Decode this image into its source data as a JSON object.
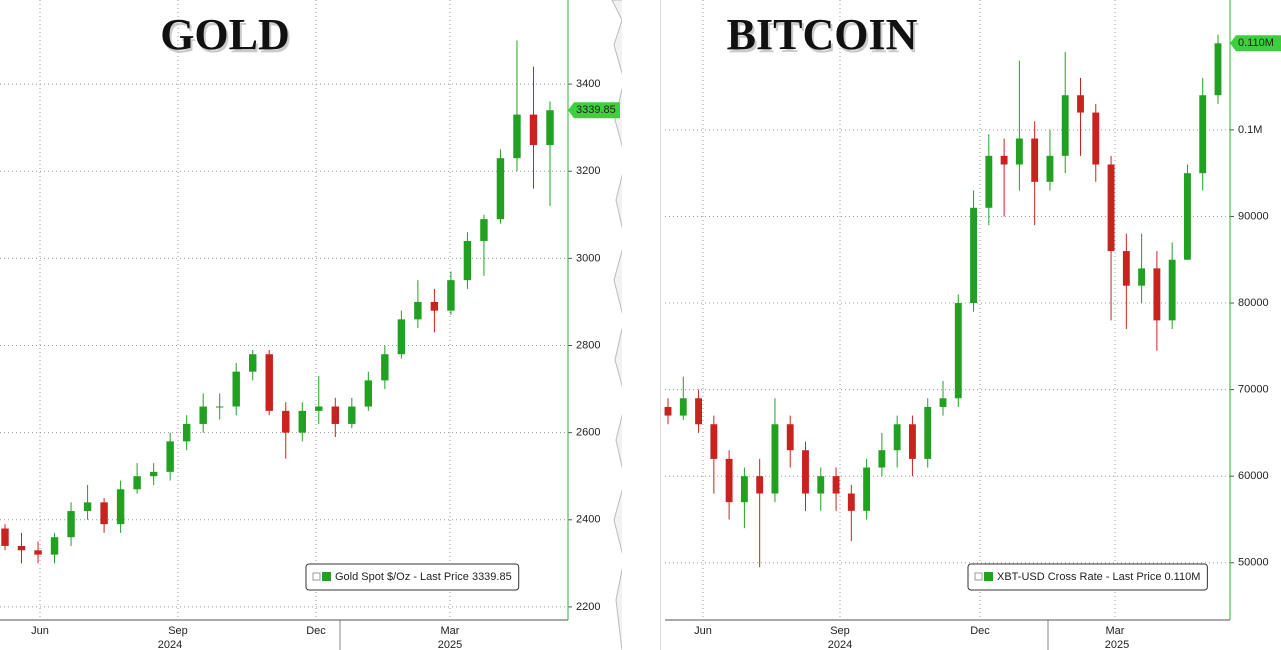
{
  "chart_data": [
    {
      "type": "candlestick",
      "title": "GOLD",
      "legend": "Gold Spot $/Oz - Last Price 3339.85",
      "last_price": 3339.85,
      "up_color": "#22a022",
      "down_color": "#c8231e",
      "x_labels": [
        "Jun",
        "Sep",
        "Dec",
        "Mar"
      ],
      "year_labels": [
        "2024",
        "2025"
      ],
      "open": [
        2380,
        2340,
        2330,
        2320,
        2360,
        2420,
        2440,
        2390,
        2470,
        2500,
        2510,
        2580,
        2620,
        2660,
        2660,
        2740,
        2780,
        2650,
        2600,
        2650,
        2660,
        2620,
        2660,
        2720,
        2780,
        2860,
        2900,
        2880,
        2950,
        3040,
        3090,
        3230,
        3330,
        3260
      ],
      "high": [
        2390,
        2370,
        2350,
        2370,
        2440,
        2480,
        2450,
        2490,
        2530,
        2530,
        2600,
        2640,
        2690,
        2690,
        2760,
        2790,
        2790,
        2670,
        2670,
        2730,
        2680,
        2680,
        2740,
        2800,
        2880,
        2950,
        2930,
        2970,
        3060,
        3100,
        3250,
        3500,
        3440,
        3360
      ],
      "low": [
        2330,
        2300,
        2300,
        2300,
        2340,
        2400,
        2370,
        2370,
        2460,
        2480,
        2490,
        2560,
        2600,
        2630,
        2640,
        2720,
        2640,
        2540,
        2580,
        2620,
        2590,
        2610,
        2650,
        2700,
        2770,
        2840,
        2830,
        2870,
        2930,
        2960,
        3080,
        3200,
        3160,
        3120
      ],
      "close": [
        2340,
        2330,
        2320,
        2360,
        2420,
        2440,
        2390,
        2470,
        2500,
        2510,
        2580,
        2620,
        2660,
        2660,
        2740,
        2780,
        2650,
        2600,
        2650,
        2660,
        2620,
        2660,
        2720,
        2780,
        2860,
        2900,
        2880,
        2950,
        3040,
        3090,
        3230,
        3330,
        3260,
        3340
      ],
      "ylim": [
        2170,
        3593
      ],
      "yticks": [
        2200,
        2400,
        2600,
        2800,
        3000,
        3200,
        3400
      ],
      "grid": true
    },
    {
      "type": "candlestick",
      "title": "BITCOIN",
      "legend": "XBT-USD Cross Rate - Last Price 0.110M",
      "last_price": {
        "value": 110000,
        "label": "0.110M"
      },
      "up_color": "#22a022",
      "down_color": "#c8231e",
      "x_labels": [
        "Jun",
        "Sep",
        "Dec",
        "Mar"
      ],
      "year_labels": [
        "2024",
        "2025"
      ],
      "open": [
        68000,
        67000,
        69000,
        66000,
        62000,
        57000,
        60000,
        58000,
        66000,
        63000,
        58000,
        60000,
        58000,
        56000,
        61000,
        63000,
        66000,
        62000,
        68000,
        69000,
        80000,
        91000,
        97000,
        96000,
        99000,
        94000,
        97000,
        104000,
        102000,
        96000,
        86000,
        82000,
        84000,
        78000,
        85000,
        95000,
        104000
      ],
      "high": [
        69000,
        71500,
        70000,
        67000,
        63000,
        61000,
        62000,
        69000,
        67000,
        64000,
        61000,
        61000,
        59000,
        62000,
        65000,
        67000,
        67000,
        69000,
        71000,
        81000,
        93000,
        99500,
        99000,
        108000,
        101000,
        100000,
        109000,
        106000,
        103000,
        97000,
        88000,
        88000,
        86000,
        87000,
        96000,
        106000,
        111000
      ],
      "low": [
        66000,
        66500,
        65000,
        58000,
        55000,
        54000,
        49500,
        57000,
        61000,
        56000,
        56000,
        56000,
        52500,
        55000,
        60000,
        61000,
        60000,
        61000,
        67000,
        68000,
        79000,
        89000,
        90000,
        93000,
        89000,
        93000,
        95000,
        97000,
        94000,
        78000,
        77000,
        80000,
        74500,
        77000,
        85000,
        93000,
        103000
      ],
      "close": [
        67000,
        69000,
        66000,
        62000,
        57000,
        60000,
        58000,
        66000,
        63000,
        58000,
        60000,
        58000,
        56000,
        61000,
        63000,
        66000,
        62000,
        68000,
        69000,
        80000,
        91000,
        97000,
        96000,
        99000,
        94000,
        97000,
        104000,
        102000,
        96000,
        86000,
        82000,
        84000,
        78000,
        85000,
        95000,
        104000,
        110000
      ],
      "ylim": [
        43391,
        115000
      ],
      "yticks": [
        50000,
        60000,
        70000,
        80000,
        90000,
        {
          "value": 100000,
          "label": "0.1M"
        }
      ],
      "grid": true
    }
  ]
}
